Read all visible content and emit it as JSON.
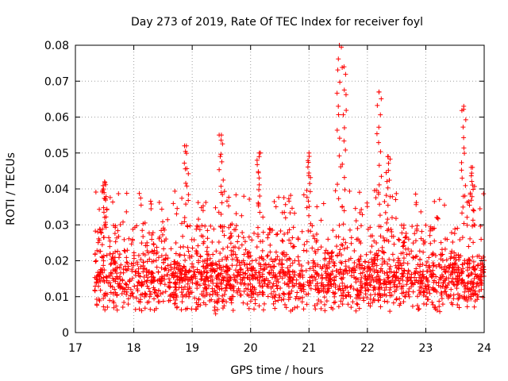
{
  "chart_data": {
    "type": "scatter",
    "title": "Day 273 of 2019, Rate Of TEC Index for receiver foyl",
    "xlabel": "GPS time / hours",
    "ylabel": "ROTI / TECUs",
    "xlim": [
      17,
      24
    ],
    "ylim": [
      0,
      0.08
    ],
    "xticks": [
      17,
      18,
      19,
      20,
      21,
      22,
      23,
      24
    ],
    "xtick_labels": [
      "17",
      "18",
      "19",
      "20",
      "21",
      "22",
      "23",
      "24"
    ],
    "yticks": [
      0,
      0.01,
      0.02,
      0.03,
      0.04,
      0.05,
      0.06,
      0.07,
      0.08
    ],
    "ytick_labels": [
      "0",
      "0.01",
      "0.02",
      "0.03",
      "0.04",
      "0.05",
      "0.06",
      "0.07",
      "0.08"
    ],
    "grid": true,
    "marker": "+",
    "color": "#ff0000",
    "series": [
      {
        "name": "ROTI",
        "x_range": [
          17.33,
          24.0
        ],
        "typical_range": [
          0.006,
          0.03
        ],
        "median": 0.015,
        "n_points": 2200,
        "peaks": [
          {
            "x": 17.5,
            "y": 0.042
          },
          {
            "x": 18.9,
            "y": 0.052
          },
          {
            "x": 19.5,
            "y": 0.055
          },
          {
            "x": 20.15,
            "y": 0.05
          },
          {
            "x": 21.0,
            "y": 0.05
          },
          {
            "x": 21.52,
            "y": 0.08
          },
          {
            "x": 21.6,
            "y": 0.074
          },
          {
            "x": 22.2,
            "y": 0.067
          },
          {
            "x": 22.35,
            "y": 0.049
          },
          {
            "x": 23.65,
            "y": 0.063
          },
          {
            "x": 23.8,
            "y": 0.046
          }
        ]
      }
    ]
  }
}
